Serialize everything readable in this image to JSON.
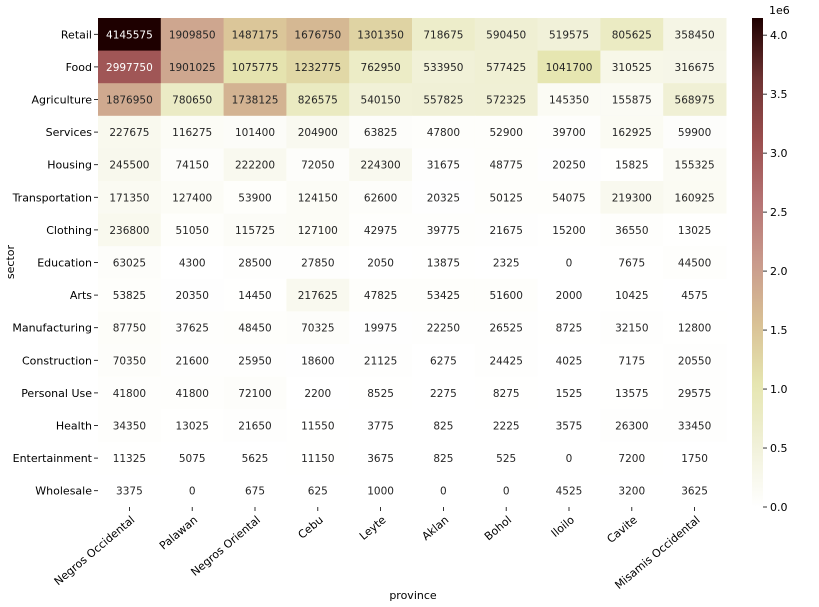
{
  "chart_data": {
    "type": "heatmap",
    "title": "",
    "xlabel": "province",
    "ylabel": "sector",
    "x": [
      "Negros Occidental",
      "Palawan",
      "Negros Oriental",
      "Cebu",
      "Leyte",
      "Aklan",
      "Bohol",
      "Iloilo",
      "Cavite",
      "Misamis Occidental"
    ],
    "y": [
      "Retail",
      "Food",
      "Agriculture",
      "Services",
      "Housing",
      "Transportation",
      "Clothing",
      "Education",
      "Arts",
      "Manufacturing",
      "Construction",
      "Personal Use",
      "Health",
      "Entertainment",
      "Wholesale"
    ],
    "values": [
      [
        4145575,
        1909850,
        1487175,
        1676750,
        1301350,
        718675,
        590450,
        519575,
        805625,
        358450
      ],
      [
        2997750,
        1901025,
        1075775,
        1232775,
        762950,
        533950,
        577425,
        1041700,
        310525,
        316675
      ],
      [
        1876950,
        780650,
        1738125,
        826575,
        540150,
        557825,
        572325,
        145350,
        155875,
        568975
      ],
      [
        227675,
        116275,
        101400,
        204900,
        63825,
        47800,
        52900,
        39700,
        162925,
        59900
      ],
      [
        245500,
        74150,
        222200,
        72050,
        224300,
        31675,
        48775,
        20250,
        15825,
        155325
      ],
      [
        171350,
        127400,
        53900,
        124150,
        62600,
        20325,
        50125,
        54075,
        219300,
        160925
      ],
      [
        236800,
        51050,
        115725,
        127100,
        42975,
        39775,
        21675,
        15200,
        36550,
        13025
      ],
      [
        63025,
        4300,
        28500,
        27850,
        2050,
        13875,
        2325,
        0,
        7675,
        44500
      ],
      [
        53825,
        20350,
        14450,
        217625,
        47825,
        53425,
        51600,
        2000,
        10425,
        4575
      ],
      [
        87750,
        37625,
        48450,
        70325,
        19975,
        22250,
        26525,
        8725,
        32150,
        12800
      ],
      [
        70350,
        21600,
        25950,
        18600,
        21125,
        6275,
        24425,
        4025,
        7175,
        20550
      ],
      [
        41800,
        41800,
        72100,
        2200,
        8525,
        2275,
        8275,
        1525,
        13575,
        29575
      ],
      [
        34350,
        13025,
        21650,
        11550,
        3775,
        825,
        2225,
        3575,
        26300,
        33450
      ],
      [
        11325,
        5075,
        5625,
        11150,
        3675,
        825,
        525,
        0,
        7200,
        1750
      ],
      [
        3375,
        0,
        675,
        625,
        1000,
        0,
        0,
        4525,
        3200,
        3625
      ]
    ],
    "colorbar": {
      "range": [
        0,
        4145575
      ],
      "ticks": [
        0.0,
        0.5,
        1.0,
        1.5,
        2.0,
        2.5,
        3.0,
        3.5,
        4.0
      ],
      "tick_labels": [
        "0.0",
        "0.5",
        "1.0",
        "1.5",
        "2.0",
        "2.5",
        "3.0",
        "3.5",
        "4.0"
      ],
      "multiplier": "1e6",
      "colormap": "pink_r",
      "colormap_stops": [
        "#ffffff",
        "#f1f1d9",
        "#e6e6b1",
        "#d9c195",
        "#c99a8c",
        "#b57373",
        "#9a4e4e",
        "#6e3333",
        "#1e0000"
      ]
    },
    "grid": false
  }
}
